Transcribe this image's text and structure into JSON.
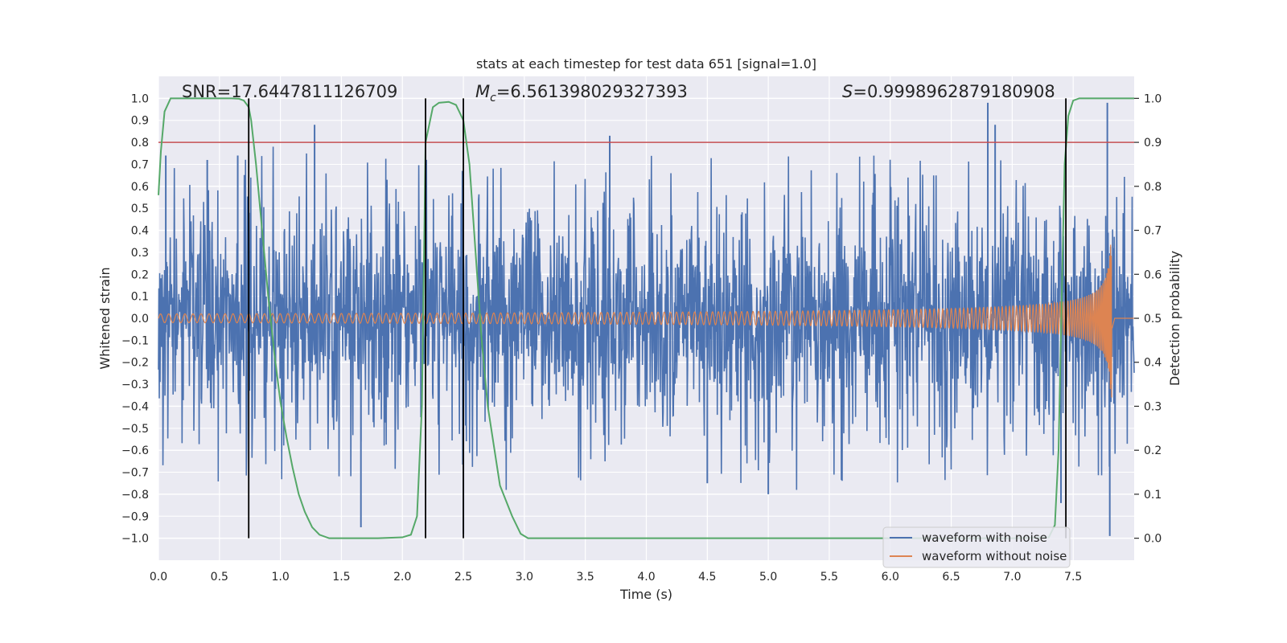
{
  "chart_data": {
    "type": "line",
    "title": "stats at each timestep for test data 651 [signal=1.0]",
    "xlabel": "Time (s)",
    "ylabel": "Whitened strain",
    "y2label": "Detection probability",
    "xlim": [
      0.0,
      8.0
    ],
    "ylim": [
      -1.1,
      1.1
    ],
    "y2lim": [
      -0.05,
      1.05
    ],
    "xticks": [
      0.0,
      0.5,
      1.0,
      1.5,
      2.0,
      2.5,
      3.0,
      3.5,
      4.0,
      4.5,
      5.0,
      5.5,
      6.0,
      6.5,
      7.0,
      7.5
    ],
    "xtick_labels": [
      "0.0",
      "0.5",
      "1.0",
      "1.5",
      "2.0",
      "2.5",
      "3.0",
      "3.5",
      "4.0",
      "4.5",
      "5.0",
      "5.5",
      "6.0",
      "6.5",
      "7.0",
      "7.5"
    ],
    "yticks": [
      1.0,
      0.9,
      0.8,
      0.7,
      0.6,
      0.5,
      0.4,
      0.3,
      0.2,
      0.1,
      0.0,
      -0.1,
      -0.2,
      -0.3,
      -0.4,
      -0.5,
      -0.6,
      -0.7,
      -0.8,
      -0.9,
      -1.0
    ],
    "ytick_labels": [
      "1.0",
      "0.9",
      "0.8",
      "0.7",
      "0.6",
      "0.5",
      "0.4",
      "0.3",
      "0.2",
      "0.1",
      "0.0",
      "−0.1",
      "−0.2",
      "−0.3",
      "−0.4",
      "−0.5",
      "−0.6",
      "−0.7",
      "−0.8",
      "−0.9",
      "−1.0"
    ],
    "y2ticks": [
      1.0,
      0.9,
      0.8,
      0.7,
      0.6,
      0.5,
      0.4,
      0.3,
      0.2,
      0.1,
      0.0
    ],
    "y2tick_labels": [
      "1.0",
      "0.9",
      "0.8",
      "0.7",
      "0.6",
      "0.5",
      "0.4",
      "0.3",
      "0.2",
      "0.1",
      "0.0"
    ],
    "annotations": {
      "snr": "SNR=17.6447811126709",
      "mc_symbol": "M",
      "mc_sub": "c",
      "mc_value": "=6.561398029327393",
      "s_symbol": "S",
      "s_value": "=0.9998962879180908"
    },
    "threshold": 0.9,
    "vlines": [
      0.74,
      2.19,
      2.5,
      7.44
    ],
    "legend": {
      "position": "lower-right",
      "entries": [
        "waveform with noise",
        "waveform without noise"
      ]
    },
    "series": [
      {
        "name": "waveform with noise",
        "color": "#4c72b0",
        "axis": "left",
        "kind": "noise",
        "base_level": 0.4,
        "notable_peaks": [
          {
            "x": 0.06,
            "y": 0.74
          },
          {
            "x": 0.4,
            "y": 0.72
          },
          {
            "x": 0.65,
            "y": 0.74
          },
          {
            "x": 1.28,
            "y": 0.88
          },
          {
            "x": 1.66,
            "y": -0.95
          },
          {
            "x": 2.5,
            "y": -0.98
          },
          {
            "x": 3.7,
            "y": 0.83
          },
          {
            "x": 4.5,
            "y": -0.75
          },
          {
            "x": 5.0,
            "y": -0.8
          },
          {
            "x": 6.8,
            "y": 0.98
          },
          {
            "x": 6.86,
            "y": 0.88
          },
          {
            "x": 7.4,
            "y": -0.84
          },
          {
            "x": 7.78,
            "y": 0.98
          },
          {
            "x": 7.8,
            "y": -0.99
          }
        ]
      },
      {
        "name": "waveform without noise",
        "color": "#dd8452",
        "axis": "left",
        "kind": "chirp",
        "merger_time": 7.82,
        "start_amplitude": 0.02,
        "peak_amplitude": 0.39
      },
      {
        "name": "detection probability",
        "color": "#55a868",
        "axis": "right",
        "x": [
          0.0,
          0.02,
          0.05,
          0.1,
          0.15,
          0.2,
          0.3,
          0.4,
          0.5,
          0.6,
          0.66,
          0.7,
          0.74,
          0.76,
          0.8,
          0.85,
          0.9,
          0.95,
          1.0,
          1.05,
          1.1,
          1.15,
          1.2,
          1.26,
          1.32,
          1.4,
          1.6,
          1.8,
          2.0,
          2.07,
          2.12,
          2.16,
          2.19,
          2.25,
          2.3,
          2.38,
          2.44,
          2.5,
          2.55,
          2.6,
          2.65,
          2.7,
          2.8,
          2.9,
          2.97,
          3.03,
          3.5,
          4.0,
          5.0,
          6.0,
          7.0,
          7.3,
          7.35,
          7.38,
          7.41,
          7.43,
          7.46,
          7.5,
          7.55,
          7.6,
          8.0
        ],
        "y": [
          0.78,
          0.88,
          0.97,
          1.0,
          1.0,
          1.0,
          1.0,
          1.0,
          1.0,
          1.0,
          0.999,
          0.995,
          0.98,
          0.95,
          0.85,
          0.7,
          0.55,
          0.42,
          0.31,
          0.23,
          0.16,
          0.1,
          0.06,
          0.025,
          0.008,
          0.0,
          0.0,
          0.0,
          0.002,
          0.008,
          0.05,
          0.3,
          0.9,
          0.98,
          0.99,
          0.992,
          0.985,
          0.95,
          0.85,
          0.65,
          0.45,
          0.3,
          0.12,
          0.05,
          0.01,
          0.0,
          0.0,
          0.0,
          0.0,
          0.0,
          0.0,
          0.002,
          0.03,
          0.2,
          0.6,
          0.85,
          0.96,
          0.995,
          1.0,
          1.0,
          1.0
        ]
      },
      {
        "name": "threshold",
        "color": "#c44e52",
        "axis": "right",
        "value": 0.9
      }
    ],
    "colors": {
      "plot_bg": "#eaeaf2",
      "grid": "#ffffff",
      "text": "#262626",
      "vline": "#000000",
      "legend_bg": "#eaeaf2",
      "legend_border": "#cccccc"
    }
  }
}
